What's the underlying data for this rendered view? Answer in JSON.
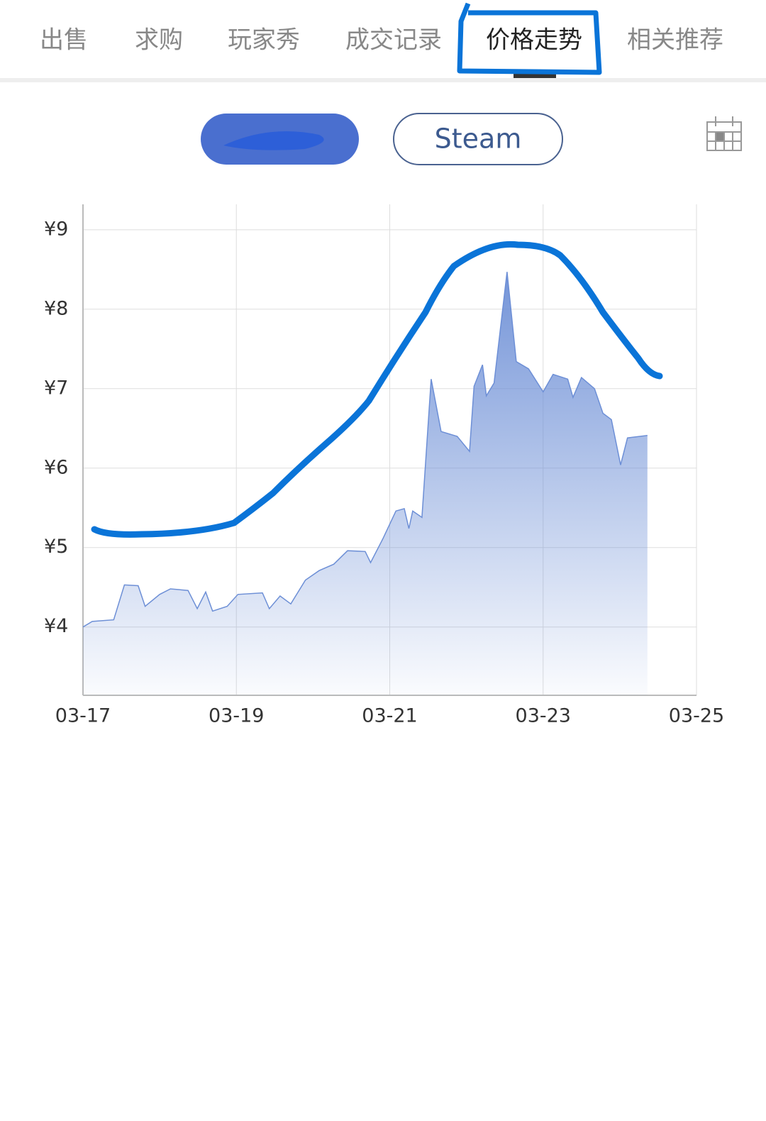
{
  "tabs": [
    "出售",
    "求购",
    "玩家秀",
    "成交记录",
    "价格走势",
    "相关推荐"
  ],
  "source_button": "Steam",
  "chart_data": {
    "type": "area",
    "color": "#6d8fd6",
    "grid": true,
    "x": [
      0,
      0.12,
      0.4,
      0.54,
      0.72,
      0.81,
      1.0,
      1.14,
      1.37,
      1.49,
      1.6,
      1.69,
      1.88,
      2.02,
      2.34,
      2.43,
      2.57,
      2.71,
      2.9,
      3.08,
      3.27,
      3.45,
      3.68,
      3.75,
      3.91,
      4.08,
      4.19,
      4.25,
      4.3,
      4.42,
      4.54,
      4.67,
      4.88,
      5.04,
      5.1,
      5.21,
      5.26,
      5.36,
      5.53,
      5.65,
      5.81,
      6.0,
      6.13,
      6.32,
      6.39,
      6.5,
      6.67,
      6.78,
      6.89,
      7.01,
      7.1,
      7.36
    ],
    "values": [
      4.0,
      4.07,
      4.09,
      4.53,
      4.52,
      4.26,
      4.41,
      4.48,
      4.46,
      4.23,
      4.44,
      4.2,
      4.26,
      4.41,
      4.43,
      4.23,
      4.39,
      4.29,
      4.59,
      4.71,
      4.79,
      4.96,
      4.95,
      4.81,
      5.11,
      5.46,
      5.49,
      5.24,
      5.46,
      5.38,
      7.12,
      6.46,
      6.4,
      6.21,
      7.03,
      7.3,
      6.91,
      7.07,
      8.47,
      7.34,
      7.25,
      6.96,
      7.18,
      7.12,
      6.89,
      7.14,
      7.0,
      6.69,
      6.61,
      6.04,
      6.38,
      6.41
    ],
    "xlim": [
      0,
      8
    ],
    "xticks": [
      {
        "value": 0,
        "label": "03-17"
      },
      {
        "value": 2,
        "label": "03-19"
      },
      {
        "value": 4,
        "label": "03-21"
      },
      {
        "value": 6,
        "label": "03-23"
      },
      {
        "value": 8,
        "label": "03-25"
      }
    ],
    "ylim": [
      3.14,
      9.32
    ],
    "yticks": [
      {
        "value": 4,
        "label": "¥4"
      },
      {
        "value": 5,
        "label": "¥5"
      },
      {
        "value": 6,
        "label": "¥6"
      },
      {
        "value": 7,
        "label": "¥7"
      },
      {
        "value": 8,
        "label": "¥8"
      },
      {
        "value": 9,
        "label": "¥9"
      }
    ]
  }
}
